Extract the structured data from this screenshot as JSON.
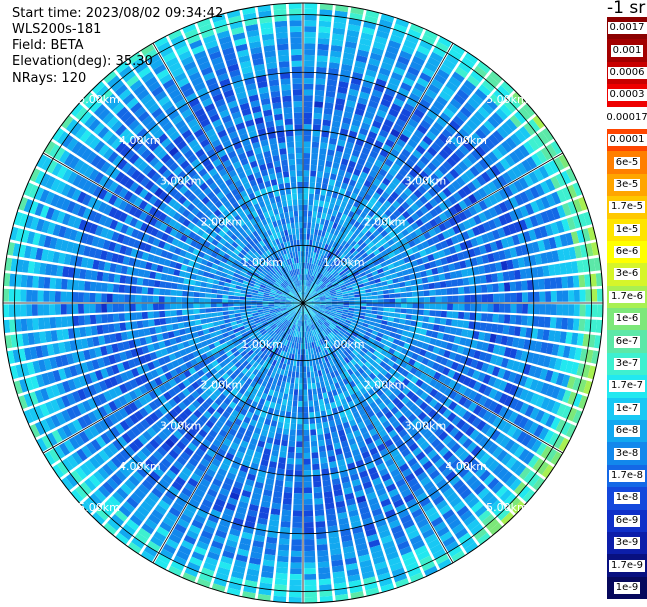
{
  "header": {
    "start_time": "Start time: 2023/08/02 09:34:42",
    "instrument": "WLS200s-181",
    "field": "Field: BETA",
    "elevation": "Elevation(deg): 35.30",
    "nrays": "NRays: 120"
  },
  "colorbar": {
    "unit_label": "-1 sr",
    "entries": [
      {
        "label": "0.0017",
        "color": "#8b0000"
      },
      {
        "label": "0.001",
        "color": "#a30000"
      },
      {
        "label": "0.0006",
        "color": "#c80000"
      },
      {
        "label": "0.0003",
        "color": "#ee0000"
      },
      {
        "label": "0.00017",
        "color": "#ffffff"
      },
      {
        "label": "0.0001",
        "color": "#ff4500"
      },
      {
        "label": "6e-5",
        "color": "#ff7f00"
      },
      {
        "label": "3e-5",
        "color": "#ffa500"
      },
      {
        "label": "1.7e-5",
        "color": "#ffc800"
      },
      {
        "label": "1e-5",
        "color": "#ffe400"
      },
      {
        "label": "6e-6",
        "color": "#ffff00"
      },
      {
        "label": "3e-6",
        "color": "#d6f52a"
      },
      {
        "label": "1.7e-6",
        "color": "#a8f052"
      },
      {
        "label": "1e-6",
        "color": "#7de87a"
      },
      {
        "label": "6e-7",
        "color": "#5ce8a8"
      },
      {
        "label": "3e-7",
        "color": "#3ef0d0"
      },
      {
        "label": "1.7e-7",
        "color": "#22e8f0"
      },
      {
        "label": "1e-7",
        "color": "#18c8f4"
      },
      {
        "label": "6e-8",
        "color": "#12a8f0"
      },
      {
        "label": "3e-8",
        "color": "#1288ec"
      },
      {
        "label": "1.7e-8",
        "color": "#1468e6"
      },
      {
        "label": "1e-8",
        "color": "#1448dc"
      },
      {
        "label": "6e-9",
        "color": "#1030c8"
      },
      {
        "label": "3e-9",
        "color": "#0c1eaa"
      },
      {
        "label": "1.7e-9",
        "color": "#081080"
      },
      {
        "label": "1e-9",
        "color": "#06085c"
      }
    ]
  },
  "chart_data": {
    "type": "heatmap",
    "projection": "polar-ppi",
    "rings_km": [
      1.0,
      2.0,
      3.0,
      4.0,
      5.0
    ],
    "ring_labels": [
      "1.00km",
      "2.00km",
      "3.00km",
      "4.00km",
      "5.00km"
    ],
    "spokes_deg": [
      0,
      30,
      60,
      90,
      120,
      150,
      180,
      210,
      240,
      270,
      300,
      330
    ],
    "max_range_km": 5.2,
    "n_rays": 120,
    "radial_profile_log10_beta": [
      {
        "range_km": 0.0,
        "value": -7.0
      },
      {
        "range_km": 0.5,
        "value": -7.4
      },
      {
        "range_km": 1.0,
        "value": -7.5
      },
      {
        "range_km": 2.0,
        "value": -7.4
      },
      {
        "range_km": 2.5,
        "value": -7.6
      },
      {
        "range_km": 3.5,
        "value": -7.7
      },
      {
        "range_km": 4.5,
        "value": -7.4
      },
      {
        "range_km": 5.0,
        "value": -6.9
      },
      {
        "range_km": 5.2,
        "value": -6.6
      }
    ],
    "colors": {
      "grid": "#000000",
      "range_label": "#ffffff",
      "ray_gap": "#ffffff"
    }
  }
}
